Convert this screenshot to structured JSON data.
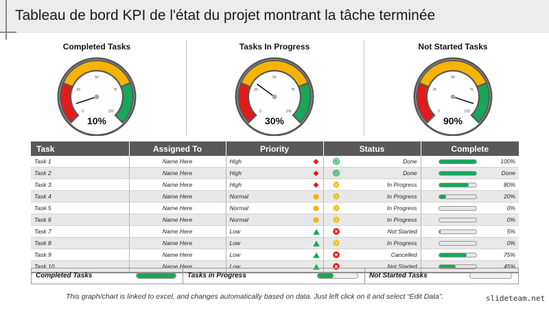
{
  "header": {
    "title": "Tableau de bord KPI de l'état du projet montrant la tâche terminée"
  },
  "gauges": [
    {
      "title": "Completed Tasks",
      "value_label": "10%",
      "value": 10
    },
    {
      "title": "Tasks In Progress",
      "value_label": "30%",
      "value": 30
    },
    {
      "title": "Not Started Tasks",
      "value_label": "90%",
      "value": 90
    }
  ],
  "gauge_scale": {
    "ticks": [
      "0",
      "25",
      "50",
      "75",
      "100"
    ],
    "zones": [
      "red",
      "yellow",
      "green"
    ]
  },
  "table": {
    "headers": {
      "task": "Task",
      "assigned": "Assigned To",
      "priority": "Priority",
      "status": "Status",
      "complete": "Complete"
    },
    "rows": [
      {
        "task": "Task 1",
        "assigned": "Name Here",
        "priority": "High",
        "priority_icon": "red-diamond-icon",
        "status": "Done",
        "status_icon": "green-check-icon",
        "progress": 100,
        "complete": "100%"
      },
      {
        "task": "Task 2",
        "assigned": "Name Here",
        "priority": "High",
        "priority_icon": "red-diamond-icon",
        "status": "Done",
        "status_icon": "green-check-icon",
        "progress": 100,
        "complete": "Done"
      },
      {
        "task": "Task 3",
        "assigned": "Name Here",
        "priority": "High",
        "priority_icon": "red-diamond-icon",
        "status": "In Progress",
        "status_icon": "gear-icon",
        "progress": 80,
        "complete": "80%"
      },
      {
        "task": "Task 4",
        "assigned": "Name Here",
        "priority": "Normal",
        "priority_icon": "yellow-circle-icon",
        "status": "In Progress",
        "status_icon": "gear-icon",
        "progress": 20,
        "complete": "20%"
      },
      {
        "task": "Task 5",
        "assigned": "Name Here",
        "priority": "Normal",
        "priority_icon": "yellow-circle-icon",
        "status": "In Progress",
        "status_icon": "gear-icon",
        "progress": 0,
        "complete": "0%"
      },
      {
        "task": "Task 6",
        "assigned": "Name Here",
        "priority": "Normal",
        "priority_icon": "yellow-circle-icon",
        "status": "In Progress",
        "status_icon": "gear-icon",
        "progress": 0,
        "complete": "0%"
      },
      {
        "task": "Task 7",
        "assigned": "Name Here",
        "priority": "Low",
        "priority_icon": "green-triangle-icon",
        "status": "Not Started",
        "status_icon": "red-x-icon",
        "progress": 5,
        "complete": "5%"
      },
      {
        "task": "Task 8",
        "assigned": "Name Here",
        "priority": "Low",
        "priority_icon": "green-triangle-icon",
        "status": "In Progress",
        "status_icon": "gear-icon",
        "progress": 0,
        "complete": "0%"
      },
      {
        "task": "Task 9",
        "assigned": "Name Here",
        "priority": "Low",
        "priority_icon": "green-triangle-icon",
        "status": "Cancelled",
        "status_icon": "red-x-icon",
        "progress": 75,
        "complete": "75%"
      },
      {
        "task": "Task 10",
        "assigned": "Name Here",
        "priority": "Low",
        "priority_icon": "green-triangle-icon",
        "status": "Not Started",
        "status_icon": "red-x-icon",
        "progress": 45,
        "complete": "45%"
      }
    ]
  },
  "legend": [
    {
      "label": "Completed  Tasks",
      "progress": 100
    },
    {
      "label": "Tasks  in Progress",
      "progress": 40
    },
    {
      "label": "Not Started  Tasks",
      "progress": 0
    }
  ],
  "footnote": "This graph/chart is linked to excel, and changes automatically based on data. Just left click on it and select “Edit Data”.",
  "watermark": "slideteam.net",
  "colors": {
    "green": "#18a659",
    "yellow": "#f4b400",
    "red": "#e31b1b",
    "header": "#595959",
    "gauge_ring": "#595959"
  }
}
